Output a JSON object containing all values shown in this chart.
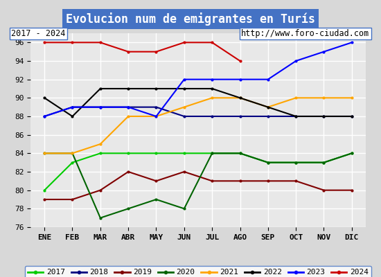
{
  "title": "Evolucion num de emigrantes en Turís",
  "subtitle_left": "2017 - 2024",
  "subtitle_right": "http://www.foro-ciudad.com",
  "months": [
    "ENE",
    "FEB",
    "MAR",
    "ABR",
    "MAY",
    "JUN",
    "JUL",
    "AGO",
    "SEP",
    "OCT",
    "NOV",
    "DIC"
  ],
  "ylim": [
    76,
    97
  ],
  "yticks": [
    76,
    78,
    80,
    82,
    84,
    86,
    88,
    90,
    92,
    94,
    96
  ],
  "series": {
    "2017": {
      "color": "#00cc00",
      "data": [
        80,
        83,
        84,
        84,
        84,
        84,
        84,
        84,
        83,
        83,
        83,
        84
      ]
    },
    "2018": {
      "color": "#000080",
      "data": [
        88,
        89,
        89,
        89,
        89,
        88,
        88,
        88,
        88,
        88,
        88,
        88
      ]
    },
    "2019": {
      "color": "#800000",
      "data": [
        79,
        79,
        80,
        82,
        81,
        82,
        81,
        81,
        81,
        81,
        80,
        80
      ]
    },
    "2020": {
      "color": "#006400",
      "data": [
        84,
        84,
        77,
        78,
        79,
        78,
        84,
        84,
        83,
        83,
        83,
        84
      ]
    },
    "2021": {
      "color": "#ffa500",
      "data": [
        84,
        84,
        85,
        88,
        88,
        89,
        90,
        90,
        89,
        90,
        90,
        90
      ]
    },
    "2022": {
      "color": "#000000",
      "data": [
        90,
        88,
        91,
        91,
        91,
        91,
        91,
        90,
        89,
        88,
        88,
        88
      ]
    },
    "2023": {
      "color": "#0000ff",
      "data": [
        88,
        89,
        89,
        89,
        88,
        92,
        92,
        92,
        92,
        94,
        95,
        96
      ]
    },
    "2024": {
      "color": "#cc0000",
      "data": [
        96,
        96,
        96,
        95,
        95,
        96,
        96,
        94,
        null,
        null,
        null,
        null
      ]
    }
  },
  "bg_color": "#d8d8d8",
  "plot_bg_color": "#e8e8e8",
  "grid_color": "#ffffff",
  "title_bg_color": "#4472c4",
  "title_text_color": "#ffffff",
  "legend_bg_color": "#ffffff",
  "legend_border_color": "#4472c4"
}
